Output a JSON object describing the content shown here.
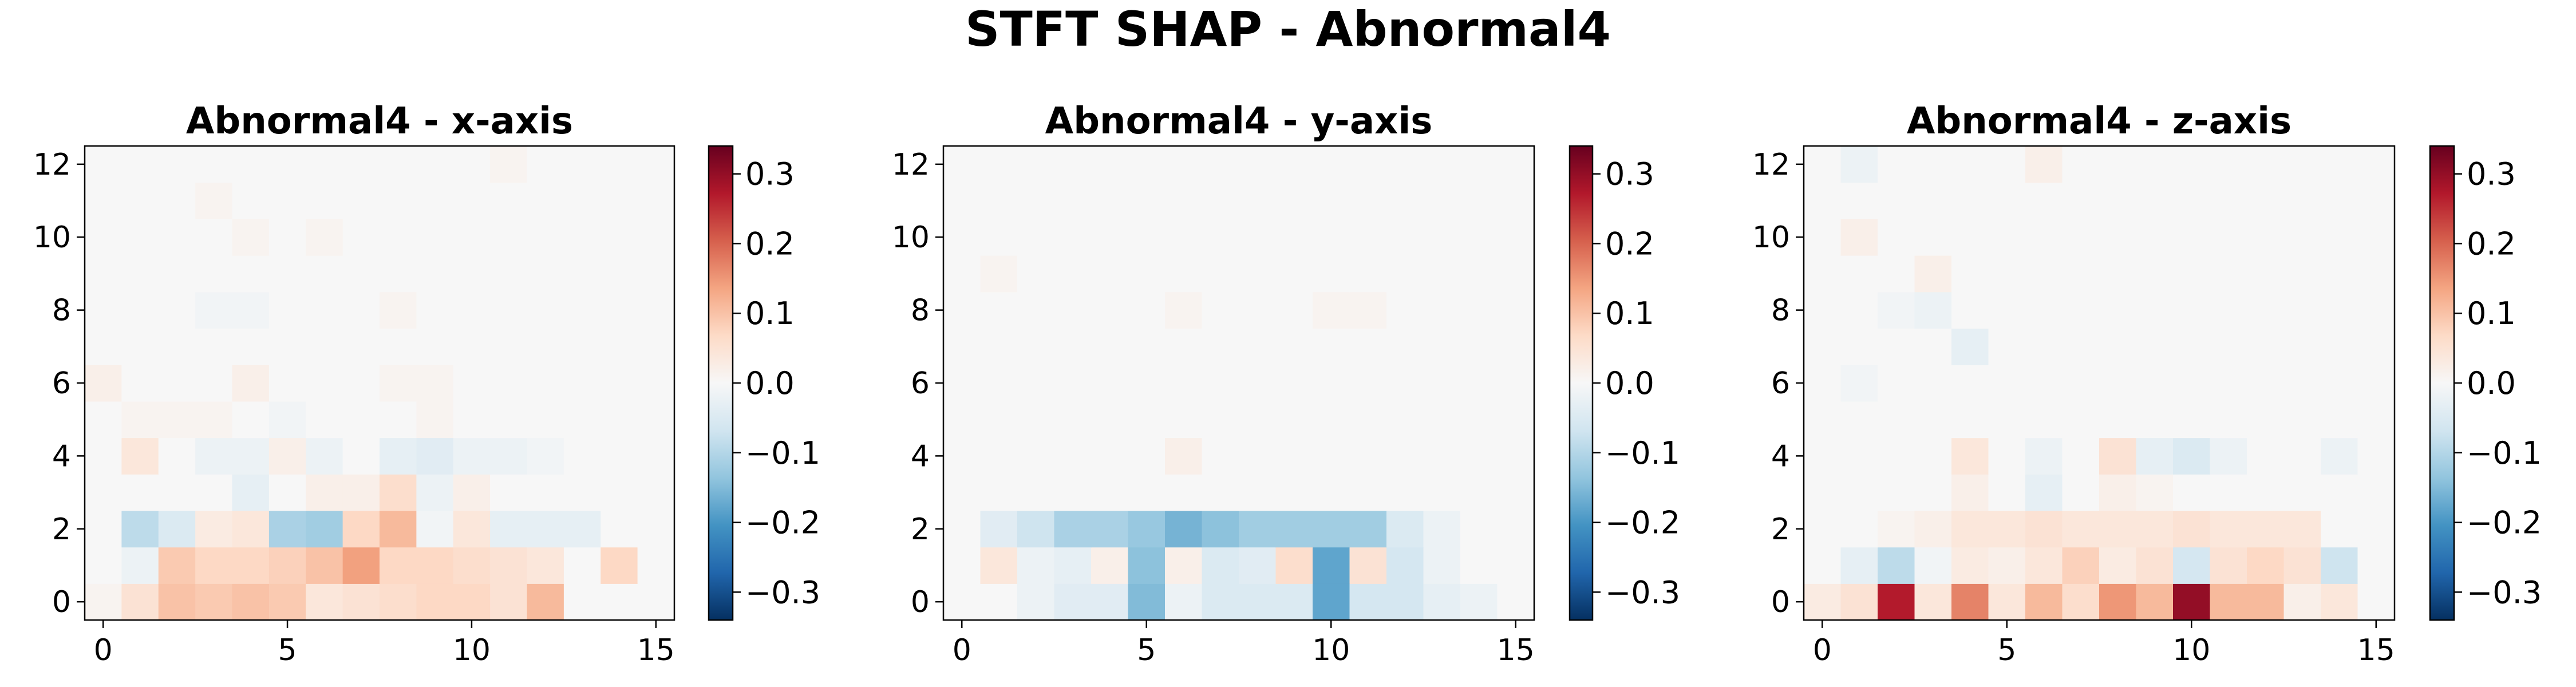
{
  "suptitle": "STFT SHAP - Abnormal4",
  "colors": {
    "colormap": "RdBu_r",
    "axes_frame": "#000000",
    "text": "#000000"
  },
  "chart_data": [
    {
      "type": "heatmap",
      "title": "Abnormal4 - x-axis",
      "xlabel": "",
      "ylabel": "",
      "xlim": [
        -0.5,
        15.5
      ],
      "ylim": [
        -0.5,
        12.5
      ],
      "xticks": [
        0,
        5,
        10,
        15
      ],
      "yticks": [
        0,
        2,
        4,
        6,
        8,
        10,
        12
      ],
      "colorbar": {
        "vmin": -0.34,
        "vmax": 0.34,
        "ticks": [
          0.3,
          0.2,
          0.1,
          0.0,
          -0.1,
          -0.2,
          -0.3
        ],
        "tick_labels": [
          "0.3",
          "0.2",
          "0.1",
          "0.0",
          "−0.1",
          "−0.2",
          "−0.3"
        ]
      },
      "grid": false,
      "z": [
        [
          0.01,
          0.05,
          0.1,
          0.09,
          0.1,
          0.09,
          0.04,
          0.05,
          0.06,
          0.07,
          0.07,
          0.05,
          0.11,
          0.0,
          0.0,
          0.0
        ],
        [
          0.0,
          -0.02,
          0.09,
          0.07,
          0.07,
          0.08,
          0.1,
          0.14,
          0.07,
          0.07,
          0.06,
          0.05,
          0.04,
          0.0,
          0.07,
          0.0
        ],
        [
          0.0,
          -0.09,
          -0.05,
          0.03,
          0.04,
          -0.11,
          -0.12,
          0.07,
          0.11,
          -0.01,
          0.04,
          -0.03,
          -0.03,
          -0.03,
          0.0,
          0.0
        ],
        [
          0.0,
          0.0,
          0.0,
          0.0,
          -0.03,
          0.0,
          0.02,
          0.02,
          0.06,
          -0.02,
          0.02,
          0.0,
          0.0,
          0.0,
          0.0,
          0.0
        ],
        [
          0.0,
          0.04,
          0.0,
          -0.02,
          -0.02,
          0.02,
          -0.02,
          0.0,
          -0.03,
          -0.04,
          -0.02,
          -0.02,
          -0.01,
          0.0,
          0.0,
          0.0
        ],
        [
          0.0,
          0.01,
          0.01,
          0.01,
          0.0,
          -0.01,
          0.0,
          0.0,
          0.0,
          0.01,
          0.0,
          0.0,
          0.0,
          0.0,
          0.0,
          0.0
        ],
        [
          0.02,
          0.0,
          0.0,
          0.0,
          0.02,
          0.0,
          0.0,
          0.0,
          0.01,
          0.01,
          0.0,
          0.0,
          0.0,
          0.0,
          0.0,
          0.0
        ],
        [
          0.0,
          0.0,
          0.0,
          0.0,
          0.0,
          0.0,
          0.0,
          0.0,
          0.0,
          0.0,
          0.0,
          0.0,
          0.0,
          0.0,
          0.0,
          0.0
        ],
        [
          0.0,
          0.0,
          0.0,
          -0.01,
          -0.01,
          0.0,
          0.0,
          0.0,
          0.01,
          0.0,
          0.0,
          0.0,
          0.0,
          0.0,
          0.0,
          0.0
        ],
        [
          0.0,
          0.0,
          0.0,
          0.0,
          0.0,
          0.0,
          0.0,
          0.0,
          0.0,
          0.0,
          0.0,
          0.0,
          0.0,
          0.0,
          0.0,
          0.0
        ],
        [
          0.0,
          0.0,
          0.0,
          0.0,
          0.01,
          0.0,
          0.01,
          0.0,
          0.0,
          0.0,
          0.0,
          0.0,
          0.0,
          0.0,
          0.0,
          0.0
        ],
        [
          0.0,
          0.0,
          0.0,
          0.01,
          0.0,
          0.0,
          0.0,
          0.0,
          0.0,
          0.0,
          0.0,
          0.0,
          0.0,
          0.0,
          0.0,
          0.0
        ],
        [
          0.0,
          0.0,
          0.0,
          0.0,
          0.0,
          0.0,
          0.0,
          0.0,
          0.0,
          0.0,
          0.0,
          0.01,
          0.0,
          0.0,
          0.0,
          0.0
        ]
      ]
    },
    {
      "type": "heatmap",
      "title": "Abnormal4 - y-axis",
      "xlabel": "",
      "ylabel": "",
      "xlim": [
        -0.5,
        15.5
      ],
      "ylim": [
        -0.5,
        12.5
      ],
      "xticks": [
        0,
        5,
        10,
        15
      ],
      "yticks": [
        0,
        2,
        4,
        6,
        8,
        10,
        12
      ],
      "colorbar": {
        "vmin": -0.34,
        "vmax": 0.34,
        "ticks": [
          0.3,
          0.2,
          0.1,
          0.0,
          -0.1,
          -0.2,
          -0.3
        ],
        "tick_labels": [
          "0.3",
          "0.2",
          "0.1",
          "0.0",
          "−0.1",
          "−0.2",
          "−0.3"
        ]
      },
      "grid": false,
      "z": [
        [
          0.0,
          0.0,
          -0.02,
          -0.04,
          -0.04,
          -0.15,
          -0.02,
          -0.05,
          -0.05,
          -0.05,
          -0.18,
          -0.06,
          -0.06,
          -0.03,
          -0.02,
          0.0
        ],
        [
          0.0,
          0.04,
          -0.02,
          -0.03,
          0.02,
          -0.14,
          0.02,
          -0.05,
          -0.04,
          0.06,
          -0.18,
          0.05,
          -0.06,
          -0.02,
          0.0,
          0.0
        ],
        [
          0.0,
          -0.04,
          -0.07,
          -0.11,
          -0.11,
          -0.13,
          -0.16,
          -0.14,
          -0.12,
          -0.12,
          -0.12,
          -0.12,
          -0.05,
          -0.02,
          0.0,
          0.0
        ],
        [
          0.0,
          0.0,
          0.0,
          0.0,
          0.0,
          0.0,
          0.0,
          0.0,
          0.0,
          0.0,
          0.0,
          0.0,
          0.0,
          0.0,
          0.0,
          0.0
        ],
        [
          0.0,
          0.0,
          0.0,
          0.0,
          0.0,
          0.0,
          0.02,
          0.0,
          0.0,
          0.0,
          0.0,
          0.0,
          0.0,
          0.0,
          0.0,
          0.0
        ],
        [
          0.0,
          0.0,
          0.0,
          0.0,
          0.0,
          0.0,
          0.0,
          0.0,
          0.0,
          0.0,
          0.0,
          0.0,
          0.0,
          0.0,
          0.0,
          0.0
        ],
        [
          0.0,
          0.0,
          0.0,
          0.0,
          0.0,
          0.0,
          0.0,
          0.0,
          0.0,
          0.0,
          0.0,
          0.0,
          0.0,
          0.0,
          0.0,
          0.0
        ],
        [
          0.0,
          0.0,
          0.0,
          0.0,
          0.0,
          0.0,
          0.0,
          0.0,
          0.0,
          0.0,
          0.0,
          0.0,
          0.0,
          0.0,
          0.0,
          0.0
        ],
        [
          0.0,
          0.0,
          0.0,
          0.0,
          0.0,
          0.0,
          0.01,
          0.0,
          0.0,
          0.0,
          0.01,
          0.01,
          0.0,
          0.0,
          0.0,
          0.0
        ],
        [
          0.0,
          0.01,
          0.0,
          0.0,
          0.0,
          0.0,
          0.0,
          0.0,
          0.0,
          0.0,
          0.0,
          0.0,
          0.0,
          0.0,
          0.0,
          0.0
        ],
        [
          0.0,
          0.0,
          0.0,
          0.0,
          0.0,
          0.0,
          0.0,
          0.0,
          0.0,
          0.0,
          0.0,
          0.0,
          0.0,
          0.0,
          0.0,
          0.0
        ],
        [
          0.0,
          0.0,
          0.0,
          0.0,
          0.0,
          0.0,
          0.0,
          0.0,
          0.0,
          0.0,
          0.0,
          0.0,
          0.0,
          0.0,
          0.0,
          0.0
        ],
        [
          0.0,
          0.0,
          0.0,
          0.0,
          0.0,
          0.0,
          0.0,
          0.0,
          0.0,
          0.0,
          0.0,
          0.0,
          0.0,
          0.0,
          0.0,
          0.0
        ]
      ]
    },
    {
      "type": "heatmap",
      "title": "Abnormal4 - z-axis",
      "xlabel": "",
      "ylabel": "",
      "xlim": [
        -0.5,
        15.5
      ],
      "ylim": [
        -0.5,
        12.5
      ],
      "xticks": [
        0,
        5,
        10,
        15
      ],
      "yticks": [
        0,
        2,
        4,
        6,
        8,
        10,
        12
      ],
      "colorbar": {
        "vmin": -0.34,
        "vmax": 0.34,
        "ticks": [
          0.3,
          0.2,
          0.1,
          0.0,
          -0.1,
          -0.2,
          -0.3
        ],
        "tick_labels": [
          "0.3",
          "0.2",
          "0.1",
          "0.0",
          "−0.1",
          "−0.2",
          "−0.3"
        ]
      },
      "grid": false,
      "z": [
        [
          0.03,
          0.05,
          0.27,
          0.04,
          0.17,
          0.04,
          0.11,
          0.06,
          0.15,
          0.11,
          0.3,
          0.11,
          0.11,
          0.02,
          0.04,
          0.0
        ],
        [
          0.0,
          -0.03,
          -0.09,
          -0.01,
          0.03,
          0.02,
          0.04,
          0.08,
          0.03,
          0.05,
          -0.06,
          0.05,
          0.07,
          0.05,
          -0.07,
          0.0
        ],
        [
          0.0,
          0.0,
          0.01,
          0.02,
          0.04,
          0.04,
          0.05,
          0.04,
          0.04,
          0.04,
          0.05,
          0.04,
          0.04,
          0.04,
          0.0,
          0.0
        ],
        [
          0.0,
          0.0,
          0.0,
          0.0,
          0.02,
          0.0,
          -0.03,
          0.0,
          0.02,
          0.01,
          0.0,
          0.0,
          0.0,
          0.0,
          0.0,
          0.0
        ],
        [
          0.0,
          0.0,
          0.0,
          0.0,
          0.04,
          0.0,
          -0.02,
          0.0,
          0.05,
          -0.03,
          -0.05,
          -0.02,
          0.0,
          0.0,
          -0.02,
          0.0
        ],
        [
          0.0,
          0.0,
          0.0,
          0.0,
          0.0,
          0.0,
          0.0,
          0.0,
          0.0,
          0.0,
          0.0,
          0.0,
          0.0,
          0.0,
          0.0,
          0.0
        ],
        [
          0.0,
          -0.01,
          0.0,
          0.0,
          0.0,
          0.0,
          0.0,
          0.0,
          0.0,
          0.0,
          0.0,
          0.0,
          0.0,
          0.0,
          0.0,
          0.0
        ],
        [
          0.0,
          0.0,
          0.0,
          0.0,
          -0.03,
          0.0,
          0.0,
          0.0,
          0.0,
          0.0,
          0.0,
          0.0,
          0.0,
          0.0,
          0.0,
          0.0
        ],
        [
          0.0,
          0.0,
          -0.01,
          -0.02,
          0.0,
          0.0,
          0.0,
          0.0,
          0.0,
          0.0,
          0.0,
          0.0,
          0.0,
          0.0,
          0.0,
          0.0
        ],
        [
          0.0,
          0.0,
          0.0,
          0.02,
          0.0,
          0.0,
          0.0,
          0.0,
          0.0,
          0.0,
          0.0,
          0.0,
          0.0,
          0.0,
          0.0,
          0.0
        ],
        [
          0.0,
          0.02,
          0.0,
          0.0,
          0.0,
          0.0,
          0.0,
          0.0,
          0.0,
          0.0,
          0.0,
          0.0,
          0.0,
          0.0,
          0.0,
          0.0
        ],
        [
          0.0,
          0.0,
          0.0,
          0.0,
          0.0,
          0.0,
          0.0,
          0.0,
          0.0,
          0.0,
          0.0,
          0.0,
          0.0,
          0.0,
          0.0,
          0.0
        ],
        [
          0.0,
          -0.02,
          0.0,
          0.0,
          0.0,
          0.0,
          0.02,
          0.0,
          0.0,
          0.0,
          0.0,
          0.0,
          0.0,
          0.0,
          0.0,
          0.0
        ]
      ]
    }
  ]
}
